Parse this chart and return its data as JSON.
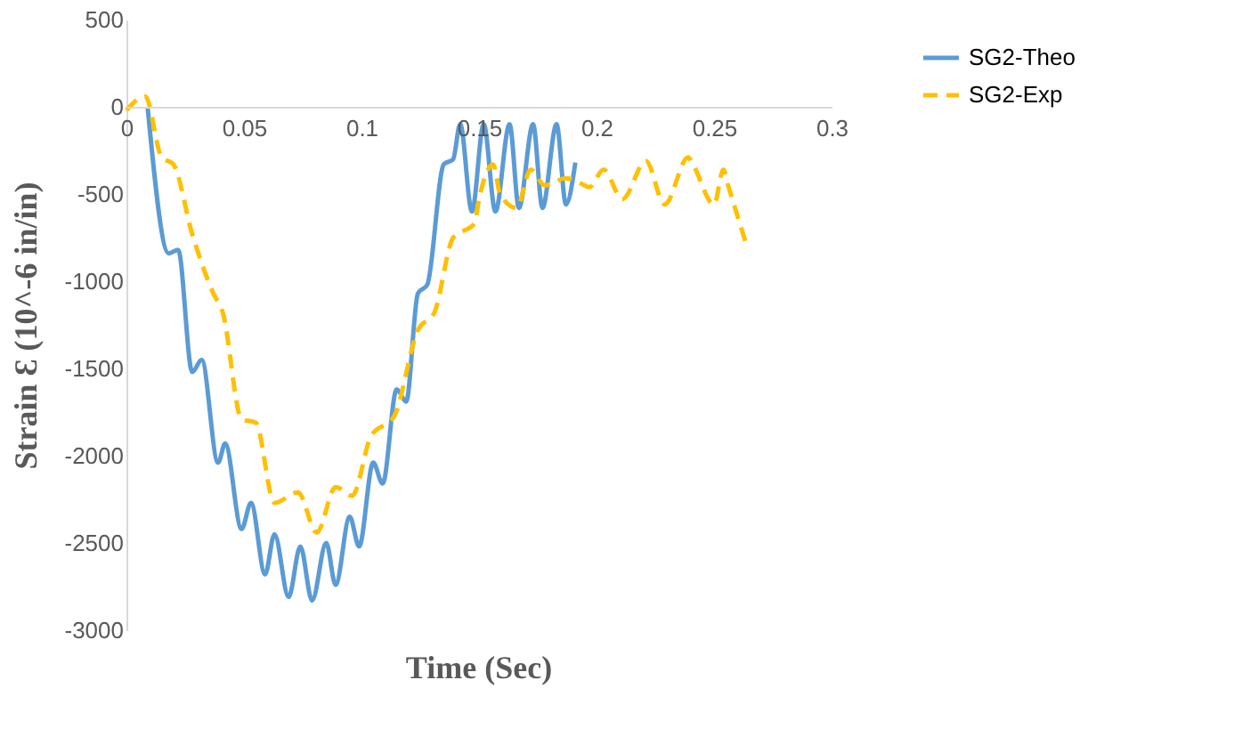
{
  "chart_data": {
    "type": "line",
    "xlabel": "Time (Sec)",
    "ylabel": "Strain Ɛ (10^-6 in/in)",
    "xlim": [
      0,
      0.3
    ],
    "xticks": [
      0,
      0.05,
      0.1,
      0.15,
      0.2,
      0.25,
      0.3
    ],
    "ylim": [
      -3000,
      500
    ],
    "yticks": [
      -3000,
      -2500,
      -2000,
      -1500,
      -1000,
      -500,
      0,
      500
    ],
    "grid": false,
    "legend": "right",
    "marker": "none",
    "series": [
      {
        "name": "SG2-Theo",
        "color": "#5b9bd5",
        "line_style": "solid",
        "x": [
          0.009,
          0.018,
          0.022,
          0.028,
          0.032,
          0.039,
          0.042,
          0.049,
          0.053,
          0.059,
          0.063,
          0.069,
          0.074,
          0.079,
          0.085,
          0.089,
          0.095,
          0.099,
          0.105,
          0.109,
          0.115,
          0.119,
          0.124,
          0.128,
          0.135,
          0.139,
          0.142,
          0.147,
          0.152,
          0.157,
          0.163,
          0.167,
          0.173,
          0.177,
          0.183,
          0.187,
          0.191
        ],
        "values": [
          0,
          -840,
          -820,
          -1520,
          -1450,
          -2040,
          -1930,
          -2420,
          -2270,
          -2680,
          -2450,
          -2810,
          -2520,
          -2830,
          -2500,
          -2740,
          -2350,
          -2520,
          -2040,
          -2160,
          -1620,
          -1690,
          -1070,
          -1020,
          -330,
          -300,
          -100,
          -600,
          -100,
          -600,
          -100,
          -580,
          -100,
          -580,
          -100,
          -560,
          -320
        ]
      },
      {
        "name": "SG2-Exp",
        "color": "#ffc000",
        "line_style": "dashed",
        "x": [
          0,
          0.008,
          0.015,
          0.02,
          0.028,
          0.037,
          0.041,
          0.049,
          0.055,
          0.063,
          0.073,
          0.081,
          0.089,
          0.096,
          0.104,
          0.114,
          0.124,
          0.131,
          0.139,
          0.148,
          0.15,
          0.156,
          0.159,
          0.166,
          0.172,
          0.178,
          0.187,
          0.192,
          0.197,
          0.203,
          0.211,
          0.221,
          0.229,
          0.239,
          0.241,
          0.25,
          0.254,
          0.256,
          0.264
        ],
        "values": [
          -20,
          60,
          -290,
          -330,
          -730,
          -1070,
          -1180,
          -1790,
          -1810,
          -2270,
          -2210,
          -2440,
          -2180,
          -2230,
          -1890,
          -1770,
          -1280,
          -1180,
          -750,
          -670,
          -530,
          -330,
          -500,
          -580,
          -360,
          -450,
          -410,
          -430,
          -460,
          -360,
          -530,
          -310,
          -560,
          -290,
          -330,
          -560,
          -360,
          -450,
          -800
        ]
      }
    ]
  }
}
